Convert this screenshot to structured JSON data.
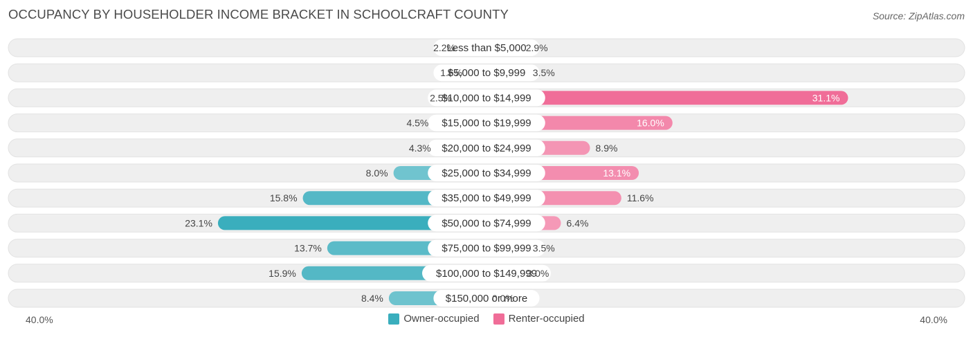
{
  "title": "OCCUPANCY BY HOUSEHOLDER INCOME BRACKET IN SCHOOLCRAFT COUNTY",
  "source": "Source: ZipAtlas.com",
  "axis": {
    "left_label": "40.0%",
    "right_label": "40.0%"
  },
  "legend": {
    "owner": "Owner-occupied",
    "renter": "Renter-occupied"
  },
  "colors": {
    "owner": "#3aaebd",
    "owner_light": "#8ccfd8",
    "renter": "#f06d98",
    "renter_light": "#f6a5bf",
    "row_bg": "#efefef"
  },
  "chart_data": {
    "type": "bar",
    "orientation": "diverging-horizontal",
    "title": "OCCUPANCY BY HOUSEHOLDER INCOME BRACKET IN SCHOOLCRAFT COUNTY",
    "categories": [
      "Less than $5,000",
      "$5,000 to $9,999",
      "$10,000 to $14,999",
      "$15,000 to $19,999",
      "$20,000 to $24,999",
      "$25,000 to $34,999",
      "$35,000 to $49,999",
      "$50,000 to $74,999",
      "$75,000 to $99,999",
      "$100,000 to $149,999",
      "$150,000 or more"
    ],
    "series": [
      {
        "name": "Owner-occupied",
        "values": [
          2.2,
          1.6,
          2.5,
          4.5,
          4.3,
          8.0,
          15.8,
          23.1,
          13.7,
          15.9,
          8.4
        ],
        "labels": [
          "2.2%",
          "1.6%",
          "2.5%",
          "4.5%",
          "4.3%",
          "8.0%",
          "15.8%",
          "23.1%",
          "13.7%",
          "15.9%",
          "8.4%"
        ]
      },
      {
        "name": "Renter-occupied",
        "values": [
          2.9,
          3.5,
          31.1,
          16.0,
          8.9,
          13.1,
          11.6,
          6.4,
          3.5,
          3.0,
          0.0
        ],
        "labels": [
          "2.9%",
          "3.5%",
          "31.1%",
          "16.0%",
          "8.9%",
          "13.1%",
          "11.6%",
          "6.4%",
          "3.5%",
          "3.0%",
          "0.0%"
        ]
      }
    ],
    "xlim": [
      -40,
      40
    ],
    "unit": "%"
  }
}
